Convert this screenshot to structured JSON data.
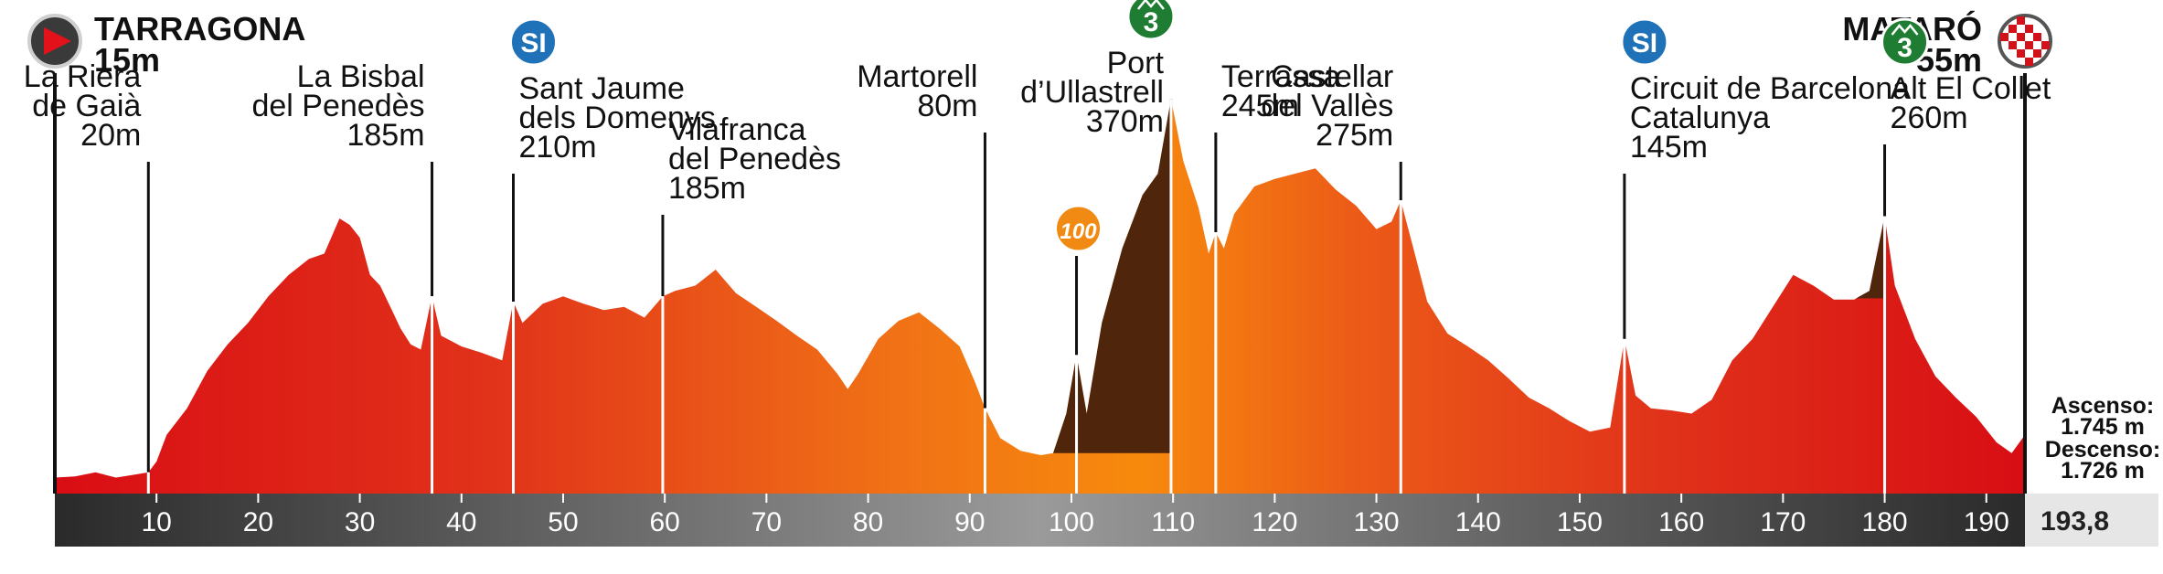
{
  "chart_data": {
    "type": "area",
    "x_unit": "km",
    "xlim": [
      0,
      193.8
    ],
    "ylim": [
      0,
      420
    ],
    "x_ticks": [
      10,
      20,
      30,
      40,
      50,
      60,
      70,
      80,
      90,
      100,
      110,
      120,
      130,
      140,
      150,
      160,
      170,
      180,
      190
    ],
    "total_distance_label": "193,8",
    "start": {
      "name": "TARRAGONA",
      "altitude": "15m"
    },
    "finish": {
      "name": "MATARÓ",
      "altitude": "55m"
    },
    "stats": {
      "ascent_label": "Ascenso:",
      "ascent_value": "1.745 m",
      "descent_label": "Descenso:",
      "descent_value": "1.726 m"
    },
    "waypoints": [
      {
        "km": 9.2,
        "lines": [
          "La Riera",
          "de Gaià",
          "20m"
        ],
        "label_y": 95,
        "align": "end"
      },
      {
        "km": 37.1,
        "lines": [
          "La Bisbal",
          "del Penedès",
          "185m"
        ],
        "label_y": 95,
        "align": "end"
      },
      {
        "km": 45.1,
        "lines": [
          "Sant Jaume",
          "dels Domenys",
          "210m"
        ],
        "label_y": 108,
        "align": "start",
        "badge": "SI"
      },
      {
        "km": 59.8,
        "lines": [
          "Vilafranca",
          "del Penedès",
          "185m"
        ],
        "label_y": 153,
        "align": "start"
      },
      {
        "km": 91.5,
        "lines": [
          "Martorell",
          "80m"
        ],
        "label_y": 95,
        "align": "end"
      },
      {
        "km": 100.5,
        "lines": [],
        "label_y": 0,
        "align": "start",
        "badge": "100"
      },
      {
        "km": 109.8,
        "lines": [
          "Port",
          "d’Ullastrell",
          "370m"
        ],
        "label_y": 80,
        "align": "end",
        "badge": "3"
      },
      {
        "km": 114.2,
        "lines": [
          "Terrassa",
          "245m"
        ],
        "label_y": 95,
        "align": "start"
      },
      {
        "km": 132.4,
        "lines": [
          "Castellar",
          "del Vallès",
          "275m"
        ],
        "label_y": 95,
        "align": "end"
      },
      {
        "km": 154.4,
        "lines": [
          "Circuit de Barcelona",
          "Catalunya",
          "145m"
        ],
        "label_y": 108,
        "align": "start",
        "badge": "SI"
      },
      {
        "km": 180.0,
        "lines": [
          "Alt El Collet",
          "260m"
        ],
        "label_y": 108,
        "align": "start",
        "badge": "3"
      }
    ],
    "climbs": [
      {
        "name": "Port d’Ullastrell",
        "km_start": 98.2,
        "km_end": 109.8
      },
      {
        "name": "Alt El Collet",
        "km_start": 177.2,
        "km_end": 180.0
      }
    ],
    "profile": [
      [
        0,
        15
      ],
      [
        2,
        16
      ],
      [
        4,
        20
      ],
      [
        6,
        15
      ],
      [
        8,
        18
      ],
      [
        9.2,
        20
      ],
      [
        10,
        30
      ],
      [
        11,
        55
      ],
      [
        13,
        80
      ],
      [
        15,
        115
      ],
      [
        17,
        140
      ],
      [
        19,
        160
      ],
      [
        21,
        185
      ],
      [
        23,
        205
      ],
      [
        25,
        220
      ],
      [
        26.5,
        225
      ],
      [
        28,
        258
      ],
      [
        29,
        252
      ],
      [
        30,
        240
      ],
      [
        31,
        205
      ],
      [
        32,
        195
      ],
      [
        33,
        175
      ],
      [
        34,
        155
      ],
      [
        35,
        140
      ],
      [
        36,
        135
      ],
      [
        37.1,
        185
      ],
      [
        38,
        148
      ],
      [
        40,
        138
      ],
      [
        42,
        132
      ],
      [
        44,
        125
      ],
      [
        45.1,
        180
      ],
      [
        46,
        160
      ],
      [
        48,
        178
      ],
      [
        50,
        185
      ],
      [
        52,
        178
      ],
      [
        54,
        172
      ],
      [
        56,
        175
      ],
      [
        58,
        165
      ],
      [
        59.8,
        185
      ],
      [
        61,
        190
      ],
      [
        63,
        195
      ],
      [
        65,
        210
      ],
      [
        67,
        188
      ],
      [
        69,
        175
      ],
      [
        71,
        162
      ],
      [
        73,
        148
      ],
      [
        75,
        135
      ],
      [
        77,
        112
      ],
      [
        78,
        98
      ],
      [
        79,
        112
      ],
      [
        81,
        145
      ],
      [
        83,
        162
      ],
      [
        85,
        170
      ],
      [
        87,
        155
      ],
      [
        89,
        138
      ],
      [
        90.5,
        105
      ],
      [
        91.5,
        80
      ],
      [
        93,
        52
      ],
      [
        95,
        40
      ],
      [
        97,
        36
      ],
      [
        98.2,
        38
      ],
      [
        99.5,
        75
      ],
      [
        100.5,
        130
      ],
      [
        101.5,
        75
      ],
      [
        103,
        160
      ],
      [
        105,
        230
      ],
      [
        107,
        280
      ],
      [
        108.5,
        300
      ],
      [
        109.8,
        370
      ],
      [
        111,
        312
      ],
      [
        112.5,
        268
      ],
      [
        113.5,
        225
      ],
      [
        114.2,
        245
      ],
      [
        115,
        230
      ],
      [
        116,
        262
      ],
      [
        118,
        288
      ],
      [
        120,
        295
      ],
      [
        122,
        300
      ],
      [
        124,
        305
      ],
      [
        126,
        285
      ],
      [
        128,
        270
      ],
      [
        130,
        248
      ],
      [
        131.5,
        255
      ],
      [
        132.4,
        275
      ],
      [
        133.5,
        235
      ],
      [
        135,
        180
      ],
      [
        137,
        150
      ],
      [
        139,
        138
      ],
      [
        141,
        125
      ],
      [
        143,
        108
      ],
      [
        145,
        90
      ],
      [
        147,
        80
      ],
      [
        149,
        68
      ],
      [
        151,
        58
      ],
      [
        153,
        62
      ],
      [
        154.4,
        145
      ],
      [
        155.5,
        92
      ],
      [
        157,
        80
      ],
      [
        159,
        78
      ],
      [
        161,
        75
      ],
      [
        163,
        88
      ],
      [
        165,
        125
      ],
      [
        167,
        145
      ],
      [
        169,
        175
      ],
      [
        171,
        205
      ],
      [
        173,
        195
      ],
      [
        175,
        182
      ],
      [
        177,
        182
      ],
      [
        178.5,
        190
      ],
      [
        180,
        260
      ],
      [
        181,
        195
      ],
      [
        183,
        145
      ],
      [
        185,
        110
      ],
      [
        187,
        90
      ],
      [
        189,
        72
      ],
      [
        191,
        48
      ],
      [
        192.5,
        38
      ],
      [
        193.8,
        55
      ]
    ]
  }
}
